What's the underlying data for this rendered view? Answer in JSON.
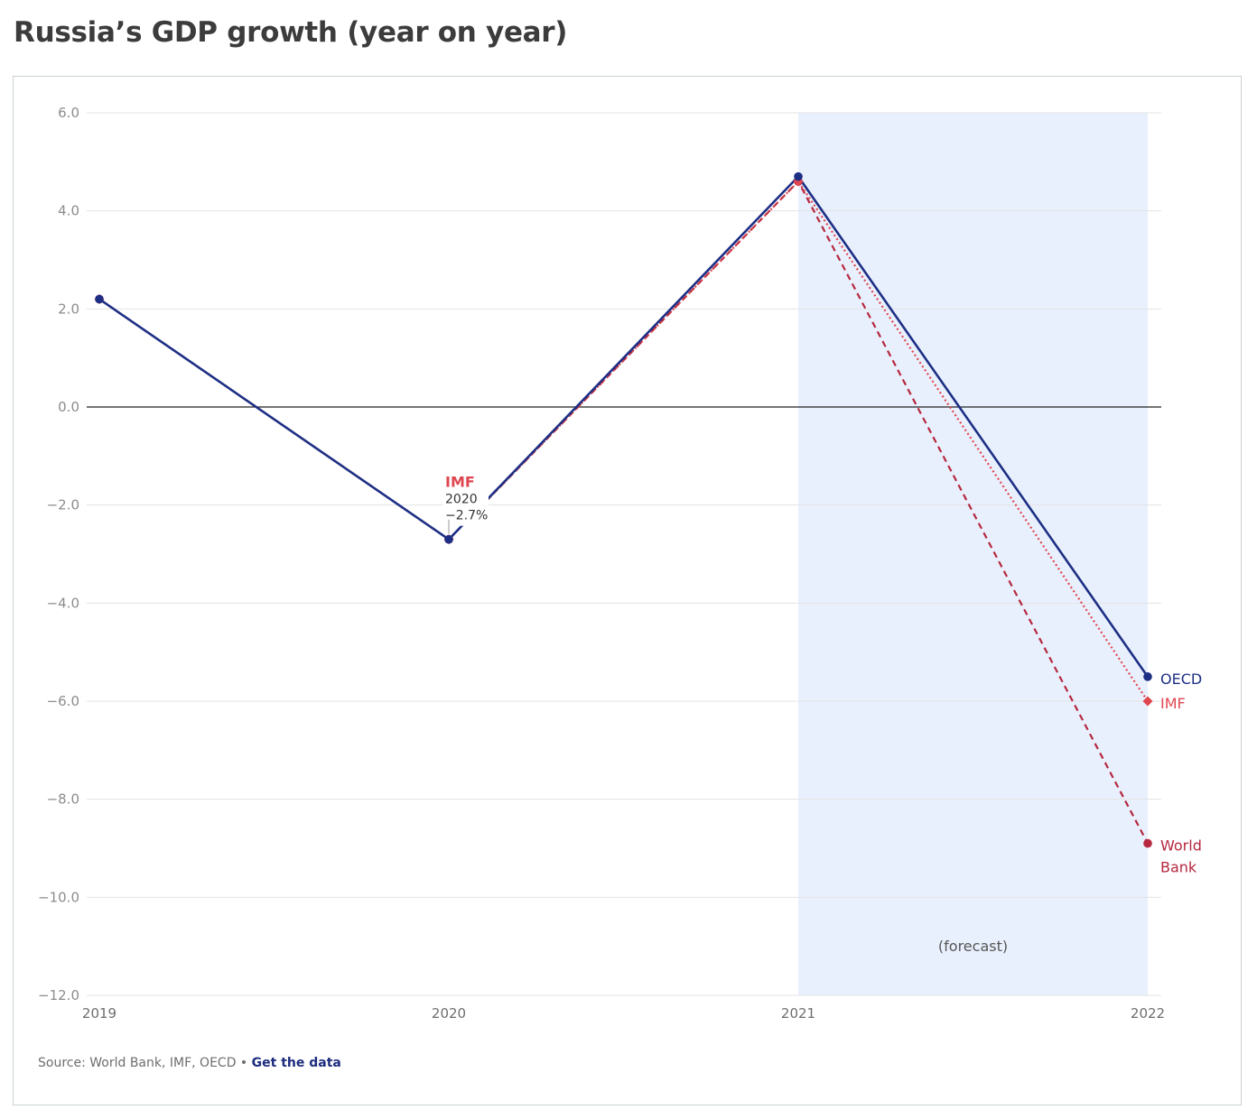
{
  "title": "Russia’s GDP growth (year on year)",
  "source_text": "Source: World Bank, IMF, OECD",
  "separator": "•",
  "get_data_label": "Get the data",
  "forecast_label": "(forecast)",
  "annotation": {
    "series": "IMF",
    "year": "2020",
    "value": "−2.7%"
  },
  "colors": {
    "oecd": "#1d2f85",
    "imf": "#e0464f",
    "world_bank": "#b5283f",
    "forecast_band": "#e9f0fd",
    "grid": "#e3e3e3",
    "zero": "#222222"
  },
  "chart_data": {
    "type": "line",
    "title": "Russia’s GDP growth (year on year)",
    "x": [
      "2019",
      "2020",
      "2021",
      "2022"
    ],
    "ylim": [
      -12,
      6
    ],
    "yticks": [
      "6.0",
      "4.0",
      "2.0",
      "0.0",
      "−2.0",
      "−4.0",
      "−6.0",
      "−8.0",
      "−10.0",
      "−12.0"
    ],
    "ytick_values": [
      6,
      4,
      2,
      0,
      -2,
      -4,
      -6,
      -8,
      -10,
      -12
    ],
    "forecast_range": [
      "2021",
      "2022"
    ],
    "series": [
      {
        "name": "OECD",
        "label_lines": [
          "OECD"
        ],
        "values": [
          2.2,
          -2.7,
          4.7,
          -5.5
        ],
        "style": "solid",
        "marker": "circle",
        "color": "#1d2f85"
      },
      {
        "name": "IMF",
        "label_lines": [
          "IMF"
        ],
        "values": [
          2.2,
          -2.7,
          4.6,
          -6.0
        ],
        "style": "dotted",
        "marker": "diamond",
        "color": "#e0464f"
      },
      {
        "name": "World Bank",
        "label_lines": [
          "World",
          "Bank"
        ],
        "values": [
          2.2,
          -2.7,
          4.6,
          -8.9
        ],
        "style": "dashed",
        "marker": "circle",
        "color": "#b5283f"
      }
    ]
  }
}
